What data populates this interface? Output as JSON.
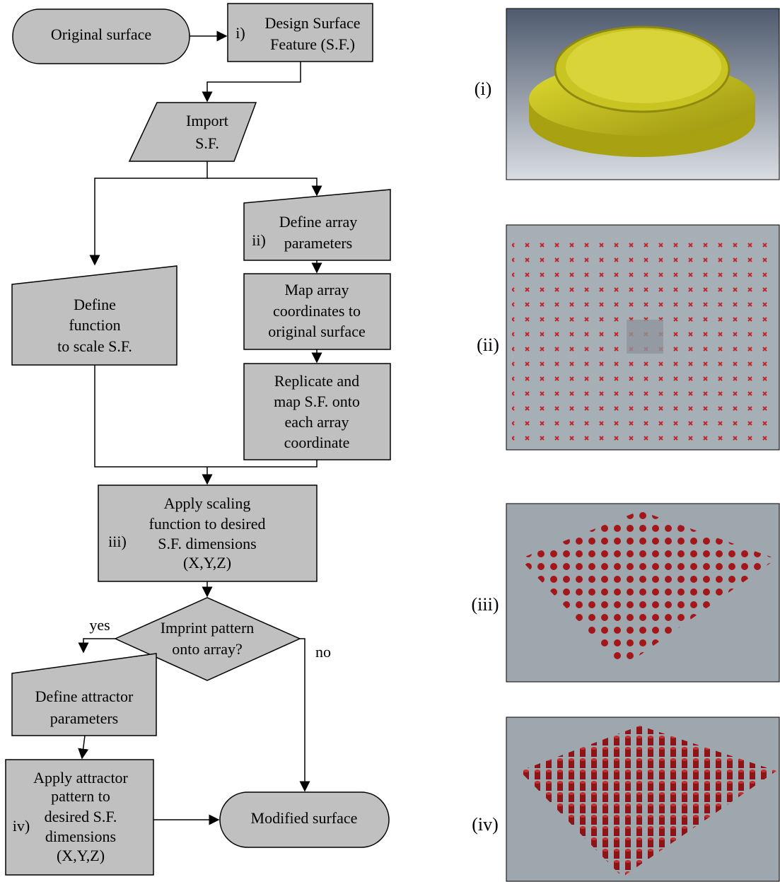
{
  "nodes": [
    {
      "lines": [
        "Original surface"
      ]
    },
    {
      "tag": "i)",
      "lines": [
        "Design Surface",
        "Feature (S.F.)"
      ]
    },
    {
      "lines": [
        "Import",
        "S.F."
      ]
    },
    {
      "tag": "ii)",
      "lines": [
        "Define array",
        "parameters"
      ]
    },
    {
      "lines": [
        "Map array",
        "coordinates to",
        "original surface"
      ]
    },
    {
      "lines": [
        "Replicate and",
        "map S.F. onto",
        "each array",
        "coordinate"
      ]
    },
    {
      "lines": [
        "Define",
        "function",
        "to scale S.F."
      ]
    },
    {
      "tag": "iii)",
      "lines": [
        "Apply scaling",
        "function to desired",
        "S.F. dimensions",
        "(X,Y,Z)"
      ]
    },
    {
      "lines": [
        "Imprint pattern",
        "onto array?"
      ]
    },
    {
      "lines": [
        "Define attractor",
        "parameters"
      ]
    },
    {
      "tag": "iv)",
      "lines": [
        "Apply attractor",
        "pattern to",
        "desired S.F.",
        "dimensions",
        "(X,Y,Z)"
      ]
    },
    {
      "lines": [
        "Modified surface"
      ]
    }
  ],
  "edge_labels": [
    "yes",
    "no"
  ],
  "panels": [
    "(i)",
    "(ii)",
    "(iii)",
    "(iv)"
  ]
}
